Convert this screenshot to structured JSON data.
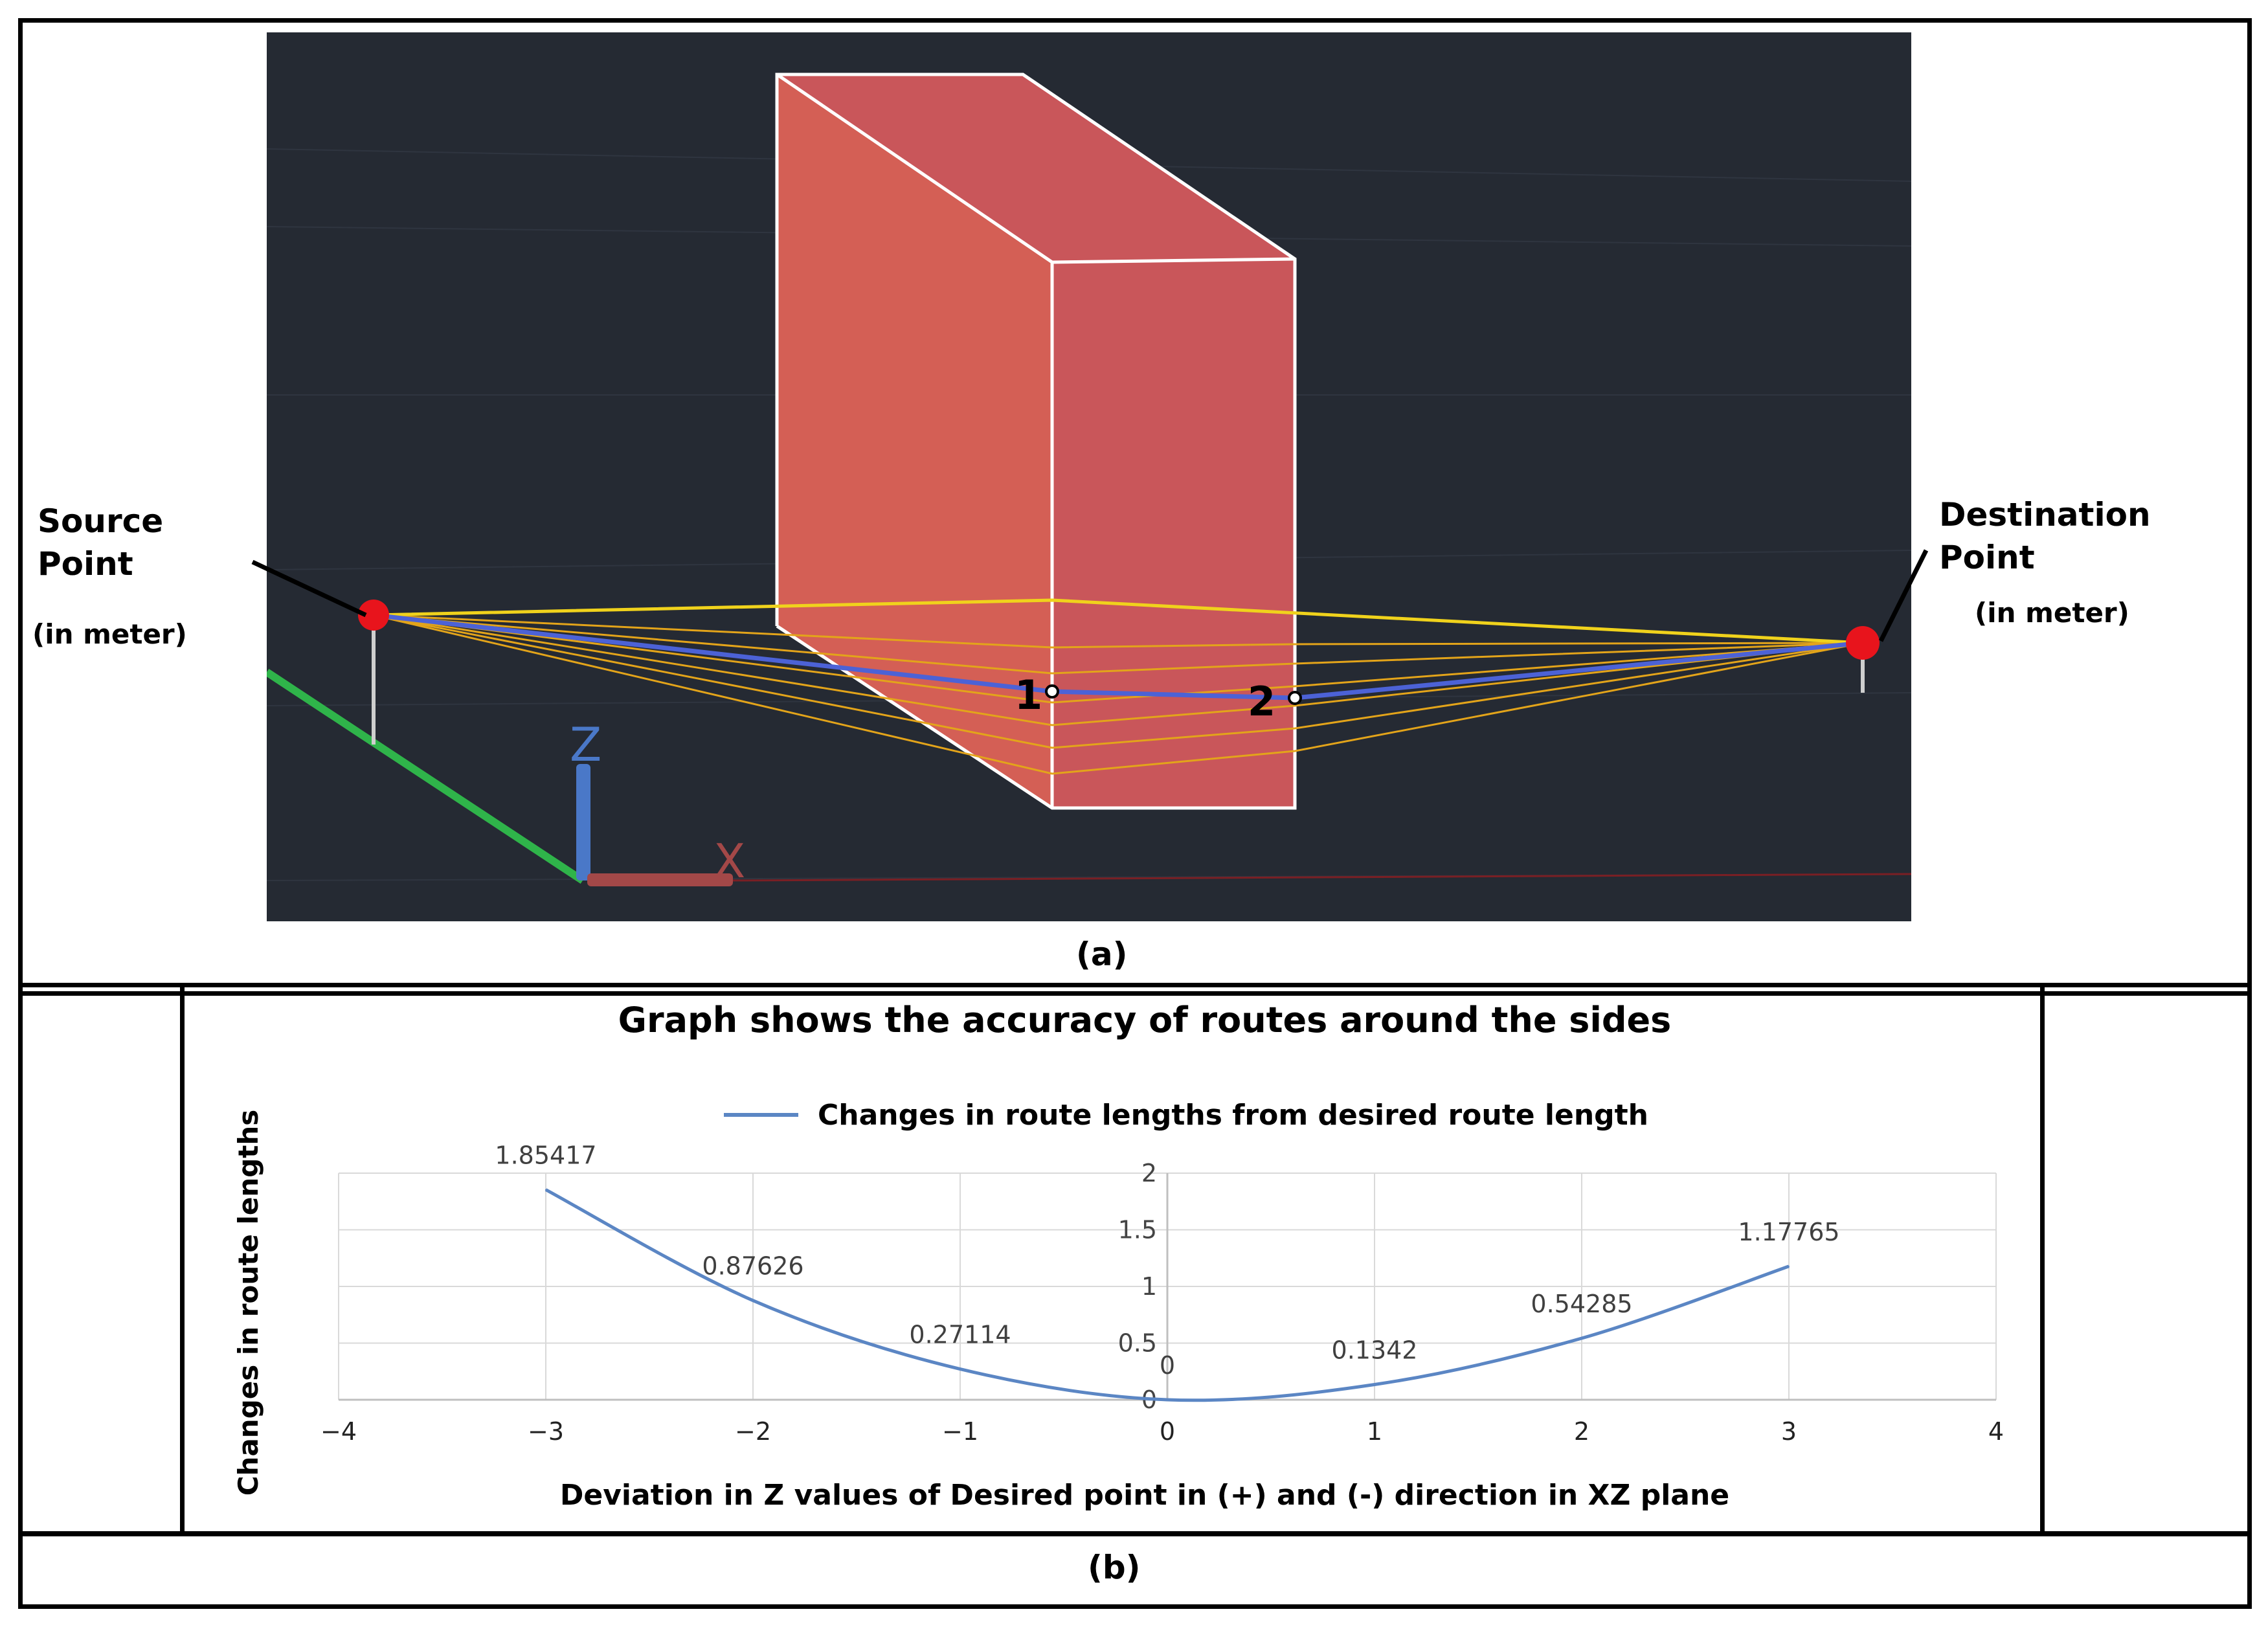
{
  "panel_a": {
    "caption": "(a)",
    "source": {
      "title_line1": "Source",
      "title_line2": "Point",
      "unit": "(in meter)"
    },
    "destination": {
      "title_line1": "Destination",
      "title_line2": "Point",
      "unit": "(in meter)"
    },
    "waypoints": [
      "1",
      "2"
    ],
    "axes": {
      "z": "Z",
      "x": "X"
    },
    "colors": {
      "background": "#252a33",
      "obstacle_front": "#d45f55",
      "obstacle_side": "#c9565a",
      "obstacle_edge": "#ffffff",
      "route_main": "#4c62d6",
      "route_alt": "#e3a41a",
      "route_top": "#f0d21c",
      "endpoint": "#e8141c",
      "axis_z": "#4a78c8",
      "axis_x": "#a34848",
      "axis_y": "#2fb44a"
    }
  },
  "panel_b": {
    "caption": "(b)",
    "chart_data": {
      "type": "line",
      "title": "Graph shows the accuracy of routes around the sides",
      "xlabel": "Deviation in Z values of Desired point in (+) and (-) direction in XZ plane",
      "ylabel": "Changes in route lengths",
      "legend": "top-center",
      "grid": true,
      "xlim": [
        -4,
        4
      ],
      "ylim": [
        0,
        2
      ],
      "x_ticks": [
        "−4",
        "−3",
        "−2",
        "−1",
        "0",
        "1",
        "2",
        "3",
        "4"
      ],
      "y_ticks": [
        "0",
        "0.5",
        "1",
        "1.5",
        "2"
      ],
      "series": [
        {
          "name": "Changes in route lengths from desired route length",
          "color": "#5b86c4",
          "x": [
            -3,
            -2,
            -1,
            0,
            1,
            2,
            3
          ],
          "y": [
            1.85417,
            0.87626,
            0.27114,
            0,
            0.1342,
            0.54285,
            1.17765
          ],
          "labels": [
            "1.85417",
            "0.87626",
            "0.27114",
            "0",
            "0.1342",
            "0.54285",
            "1.17765"
          ]
        }
      ]
    }
  }
}
